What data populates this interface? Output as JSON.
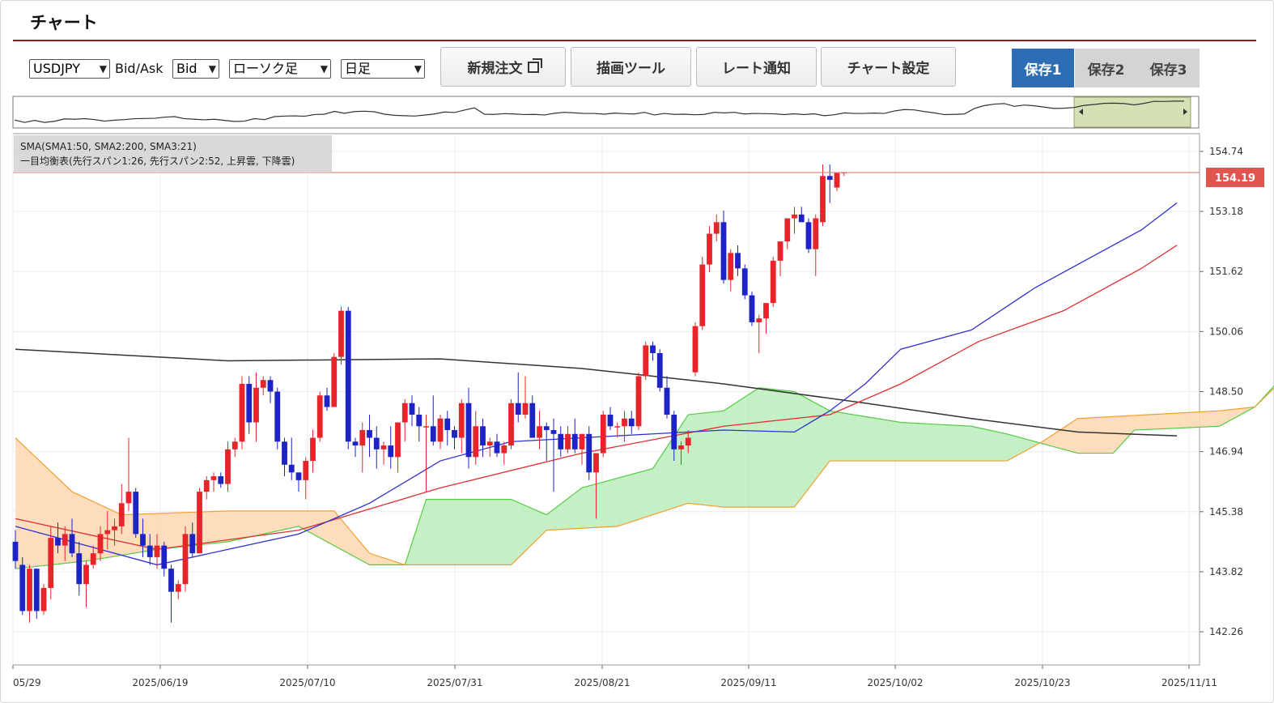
{
  "header": {
    "title": "チャート"
  },
  "toolbar": {
    "symbol": "USDJPY",
    "bidask_label": "Bid/Ask",
    "bidask_value": "Bid",
    "chart_type": "ローソク足",
    "timeframe": "日足",
    "buttons": {
      "new_order": "新規注文",
      "draw_tool": "描画ツール",
      "rate_alert": "レート通知",
      "chart_settings": "チャート設定"
    },
    "saves": [
      "保存1",
      "保存2",
      "保存3"
    ],
    "active_save": 0
  },
  "legend": {
    "line1": "SMA(SMA1:50, SMA2:200, SMA3:21)",
    "line2": "一目均衡表(先行スパン1:26, 先行スパン2:52, 上昇雲, 下降雲)"
  },
  "colors": {
    "up": "#e8242b",
    "down": "#1d23c4",
    "accent": "#2d6db5",
    "title_rule": "#9b1b1b",
    "price_tag": "#e05550"
  },
  "chart_data": {
    "type": "candlestick",
    "symbol": "USDJPY",
    "timeframe": "daily",
    "y_ticks": [
      "154.74",
      "153.18",
      "151.62",
      "150.06",
      "148.50",
      "146.94",
      "145.38",
      "143.82",
      "142.26"
    ],
    "ylim": [
      141.4,
      155.2
    ],
    "x_ticks": [
      "05/29",
      "2025/06/19",
      "2025/07/10",
      "2025/07/31",
      "2025/08/21",
      "2025/09/11",
      "2025/10/02",
      "2025/10/23",
      "2025/11/11"
    ],
    "current_price": "154.19",
    "grid": true,
    "candles": [
      [
        144.6,
        144.9,
        143.9,
        144.1
      ],
      [
        144.0,
        144.2,
        142.7,
        142.8
      ],
      [
        142.8,
        144.0,
        142.5,
        143.9
      ],
      [
        143.9,
        143.9,
        142.6,
        142.8
      ],
      [
        142.8,
        143.5,
        142.7,
        143.4
      ],
      [
        143.4,
        145.0,
        143.1,
        144.7
      ],
      [
        144.7,
        145.1,
        144.3,
        144.5
      ],
      [
        144.5,
        145.0,
        144.1,
        144.8
      ],
      [
        144.8,
        145.2,
        144.2,
        144.3
      ],
      [
        144.3,
        144.6,
        143.2,
        143.5
      ],
      [
        143.5,
        144.1,
        142.9,
        144.0
      ],
      [
        144.0,
        144.5,
        143.9,
        144.3
      ],
      [
        144.3,
        145.0,
        144.1,
        144.8
      ],
      [
        144.8,
        145.4,
        144.4,
        144.9
      ],
      [
        144.9,
        145.2,
        144.5,
        145.0
      ],
      [
        145.0,
        146.1,
        144.8,
        145.6
      ],
      [
        145.6,
        147.3,
        145.4,
        145.9
      ],
      [
        145.9,
        146.0,
        144.7,
        144.8
      ],
      [
        144.8,
        145.2,
        144.2,
        144.5
      ],
      [
        144.5,
        144.8,
        144.0,
        144.2
      ],
      [
        144.2,
        144.8,
        143.9,
        144.5
      ],
      [
        144.5,
        144.6,
        143.7,
        143.9
      ],
      [
        143.9,
        144.0,
        142.5,
        143.3
      ],
      [
        143.3,
        143.6,
        143.1,
        143.5
      ],
      [
        143.5,
        145.0,
        143.3,
        144.8
      ],
      [
        144.8,
        145.1,
        144.2,
        144.3
      ],
      [
        144.3,
        146.0,
        144.3,
        145.9
      ],
      [
        145.9,
        146.3,
        145.7,
        146.2
      ],
      [
        146.2,
        146.4,
        145.9,
        146.3
      ],
      [
        146.3,
        146.4,
        146.0,
        146.1
      ],
      [
        146.1,
        147.2,
        145.9,
        147.0
      ],
      [
        147.0,
        147.3,
        146.8,
        147.2
      ],
      [
        147.2,
        148.9,
        147.0,
        148.7
      ],
      [
        148.7,
        148.9,
        147.4,
        147.7
      ],
      [
        147.7,
        149.0,
        147.2,
        148.6
      ],
      [
        148.6,
        148.9,
        148.4,
        148.8
      ],
      [
        148.8,
        148.9,
        148.2,
        148.5
      ],
      [
        148.5,
        148.6,
        147.0,
        147.2
      ],
      [
        147.2,
        147.3,
        146.3,
        146.6
      ],
      [
        146.6,
        147.3,
        146.2,
        146.4
      ],
      [
        146.4,
        146.4,
        145.9,
        146.2
      ],
      [
        146.2,
        146.8,
        145.7,
        146.7
      ],
      [
        146.7,
        147.5,
        146.4,
        147.3
      ],
      [
        147.3,
        148.5,
        147.2,
        148.4
      ],
      [
        148.4,
        148.6,
        148.0,
        148.1
      ],
      [
        148.1,
        149.5,
        148.1,
        149.4
      ],
      [
        149.4,
        150.7,
        149.2,
        150.6
      ],
      [
        150.6,
        150.7,
        147.0,
        147.2
      ],
      [
        147.2,
        147.3,
        146.8,
        147.1
      ],
      [
        147.1,
        147.7,
        146.4,
        147.5
      ],
      [
        147.5,
        147.9,
        146.8,
        147.3
      ],
      [
        147.3,
        147.6,
        146.5,
        147.0
      ],
      [
        147.0,
        147.2,
        146.6,
        147.1
      ],
      [
        147.1,
        147.6,
        146.5,
        146.8
      ],
      [
        146.8,
        147.7,
        146.4,
        147.7
      ],
      [
        147.7,
        148.3,
        147.2,
        148.2
      ],
      [
        148.2,
        148.4,
        147.6,
        147.9
      ],
      [
        147.9,
        148.1,
        147.2,
        147.6
      ],
      [
        147.6,
        147.9,
        145.9,
        147.6
      ],
      [
        147.6,
        148.4,
        147.1,
        147.2
      ],
      [
        147.2,
        147.9,
        147.0,
        147.8
      ],
      [
        147.8,
        148.0,
        147.1,
        147.5
      ],
      [
        147.5,
        147.6,
        147.0,
        147.3
      ],
      [
        147.3,
        148.3,
        146.9,
        148.2
      ],
      [
        148.2,
        148.6,
        146.5,
        146.8
      ],
      [
        146.8,
        148.0,
        146.6,
        147.6
      ],
      [
        147.6,
        147.8,
        146.8,
        147.1
      ],
      [
        147.1,
        147.3,
        146.8,
        147.2
      ],
      [
        147.2,
        147.4,
        146.8,
        146.9
      ],
      [
        146.9,
        147.2,
        146.6,
        147.1
      ],
      [
        147.1,
        148.3,
        147.0,
        148.2
      ],
      [
        148.2,
        149.0,
        147.7,
        147.9
      ],
      [
        147.9,
        148.9,
        147.8,
        148.2
      ],
      [
        148.2,
        148.4,
        147.3,
        147.3
      ],
      [
        147.3,
        148.0,
        147.0,
        147.6
      ],
      [
        147.6,
        147.7,
        146.7,
        147.5
      ],
      [
        147.5,
        147.8,
        145.9,
        147.4
      ],
      [
        147.4,
        147.6,
        146.8,
        147.0
      ],
      [
        147.0,
        147.6,
        146.9,
        147.4
      ],
      [
        147.4,
        147.8,
        146.9,
        147.0
      ],
      [
        147.0,
        147.4,
        146.6,
        147.4
      ],
      [
        147.4,
        147.6,
        146.2,
        146.4
      ],
      [
        146.4,
        146.9,
        145.2,
        146.9
      ],
      [
        146.9,
        148.0,
        146.8,
        147.9
      ],
      [
        147.9,
        148.1,
        147.5,
        147.6
      ],
      [
        147.6,
        147.7,
        147.3,
        147.6
      ],
      [
        147.6,
        148.0,
        147.2,
        147.8
      ],
      [
        147.8,
        148.0,
        147.4,
        147.6
      ],
      [
        147.6,
        149.0,
        147.5,
        148.9
      ],
      [
        148.9,
        149.8,
        148.8,
        149.7
      ],
      [
        149.7,
        149.8,
        149.3,
        149.5
      ],
      [
        149.5,
        149.6,
        148.5,
        148.6
      ],
      [
        148.6,
        148.9,
        147.8,
        147.9
      ],
      [
        147.9,
        148.0,
        146.7,
        147.0
      ],
      [
        147.0,
        147.2,
        146.6,
        147.1
      ],
      [
        147.1,
        147.5,
        146.9,
        147.3
      ],
      [
        149.0,
        150.3,
        148.9,
        150.2
      ],
      [
        150.2,
        152.0,
        150.1,
        151.8
      ],
      [
        151.8,
        152.8,
        151.6,
        152.6
      ],
      [
        152.6,
        153.1,
        152.4,
        152.9
      ],
      [
        152.9,
        153.2,
        151.3,
        151.4
      ],
      [
        151.4,
        152.2,
        151.1,
        152.1
      ],
      [
        152.1,
        152.3,
        151.5,
        151.7
      ],
      [
        151.7,
        151.8,
        150.9,
        151.0
      ],
      [
        151.0,
        151.1,
        150.2,
        150.3
      ],
      [
        150.3,
        150.5,
        149.5,
        150.4
      ],
      [
        150.4,
        150.8,
        150.0,
        150.8
      ],
      [
        150.8,
        152.0,
        150.7,
        151.9
      ],
      [
        151.9,
        152.3,
        151.5,
        152.4
      ],
      [
        152.4,
        153.0,
        152.2,
        153.0
      ],
      [
        153.0,
        153.3,
        152.6,
        153.1
      ],
      [
        153.1,
        153.3,
        152.9,
        152.9
      ],
      [
        152.9,
        153.0,
        152.1,
        152.2
      ],
      [
        152.2,
        153.1,
        151.5,
        153.0
      ],
      [
        152.9,
        154.4,
        152.8,
        154.1
      ],
      [
        154.1,
        154.4,
        153.4,
        154.0
      ],
      [
        153.8,
        154.2,
        153.7,
        154.2
      ],
      [
        154.2,
        154.2,
        154.1,
        154.2
      ]
    ],
    "sma_50": [
      [
        0,
        145.2
      ],
      [
        20,
        144.4
      ],
      [
        40,
        144.9
      ],
      [
        60,
        146.0
      ],
      [
        80,
        146.9
      ],
      [
        100,
        147.6
      ],
      [
        115,
        147.9
      ],
      [
        125,
        148.7
      ],
      [
        136,
        149.8
      ],
      [
        148,
        150.6
      ],
      [
        159,
        151.7
      ],
      [
        164,
        152.3
      ]
    ],
    "sma_200": [
      [
        0,
        149.6
      ],
      [
        30,
        149.3
      ],
      [
        60,
        149.35
      ],
      [
        80,
        149.1
      ],
      [
        100,
        148.7
      ],
      [
        120,
        148.2
      ],
      [
        135,
        147.8
      ],
      [
        150,
        147.45
      ],
      [
        164,
        147.35
      ]
    ],
    "sma_21": [
      [
        0,
        145.0
      ],
      [
        20,
        144.0
      ],
      [
        30,
        144.4
      ],
      [
        40,
        144.8
      ],
      [
        50,
        145.6
      ],
      [
        60,
        146.7
      ],
      [
        70,
        147.2
      ],
      [
        80,
        147.3
      ],
      [
        90,
        147.4
      ],
      [
        100,
        147.5
      ],
      [
        110,
        147.45
      ],
      [
        115,
        148.0
      ],
      [
        120,
        148.7
      ],
      [
        125,
        149.6
      ],
      [
        135,
        150.1
      ],
      [
        144,
        151.2
      ],
      [
        152,
        152.0
      ],
      [
        159,
        152.7
      ],
      [
        164,
        153.4
      ]
    ],
    "senkou_a": [
      [
        0,
        143.9
      ],
      [
        10,
        144.1
      ],
      [
        20,
        144.4
      ],
      [
        30,
        144.6
      ],
      [
        40,
        145.0
      ],
      [
        50,
        144.0
      ],
      [
        55,
        144.0
      ],
      [
        58,
        145.7
      ],
      [
        70,
        145.7
      ],
      [
        75,
        145.3
      ],
      [
        80,
        146.0
      ],
      [
        90,
        146.5
      ],
      [
        95,
        147.9
      ],
      [
        100,
        148.0
      ],
      [
        105,
        148.6
      ],
      [
        110,
        148.5
      ],
      [
        115,
        148.0
      ],
      [
        125,
        147.7
      ],
      [
        135,
        147.6
      ],
      [
        140,
        147.4
      ],
      [
        150,
        146.9
      ],
      [
        155,
        146.9
      ],
      [
        158,
        147.5
      ],
      [
        170,
        147.6
      ],
      [
        175,
        148.1
      ],
      [
        182,
        149.5
      ],
      [
        184,
        149.7
      ]
    ],
    "senkou_b": [
      [
        0,
        147.3
      ],
      [
        8,
        145.9
      ],
      [
        15,
        145.3
      ],
      [
        30,
        145.4
      ],
      [
        45,
        145.4
      ],
      [
        50,
        144.3
      ],
      [
        55,
        144.0
      ],
      [
        70,
        144.0
      ],
      [
        75,
        144.9
      ],
      [
        85,
        145.0
      ],
      [
        95,
        145.6
      ],
      [
        100,
        145.5
      ],
      [
        110,
        145.5
      ],
      [
        115,
        146.7
      ],
      [
        125,
        146.7
      ],
      [
        135,
        146.7
      ],
      [
        140,
        146.7
      ],
      [
        145,
        147.2
      ],
      [
        150,
        147.8
      ],
      [
        160,
        147.9
      ],
      [
        170,
        148.0
      ],
      [
        175,
        148.1
      ],
      [
        180,
        149.0
      ],
      [
        184,
        149.3
      ]
    ]
  }
}
